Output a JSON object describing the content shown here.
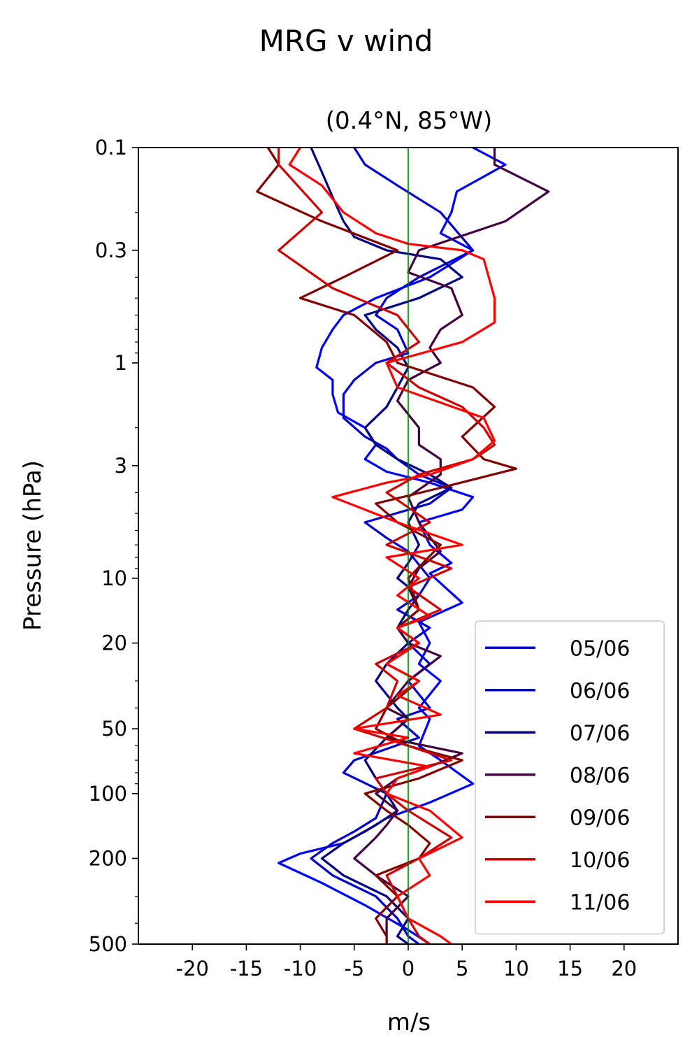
{
  "chart_data": {
    "type": "line",
    "title": "MRG v wind",
    "subtitle": "(0.4°N, 85°W)",
    "xlabel": "m/s",
    "ylabel": "Pressure (hPa)",
    "xlim": [
      -25,
      25
    ],
    "ylim": [
      500,
      0.1
    ],
    "yscale": "log",
    "y_inverted": true,
    "xticks": [
      -20,
      -15,
      -10,
      -5,
      0,
      5,
      10,
      15,
      20
    ],
    "xtick_labels": [
      "-20",
      "-15",
      "-10",
      "-5",
      "0",
      "5",
      "10",
      "15",
      "20"
    ],
    "yticks": [
      0.1,
      0.3,
      1,
      3,
      10,
      20,
      50,
      100,
      200,
      500
    ],
    "ytick_labels": [
      "0.1",
      "0.3",
      "1",
      "3",
      "10",
      "20",
      "50",
      "100",
      "200",
      "500"
    ],
    "reference_line": {
      "x": 0,
      "color": "#008000"
    },
    "legend_position": "lower-right",
    "grid": false,
    "series": [
      {
        "name": "05/06",
        "color": "#0000ff",
        "points": [
          [
            6,
            0.1
          ],
          [
            9,
            0.12
          ],
          [
            4.5,
            0.16
          ],
          [
            4,
            0.2
          ],
          [
            3,
            0.25
          ],
          [
            6,
            0.3
          ],
          [
            2,
            0.4
          ],
          [
            -3,
            0.5
          ],
          [
            -6,
            0.6
          ],
          [
            -7,
            0.7
          ],
          [
            -8,
            0.85
          ],
          [
            -8.5,
            1.05
          ],
          [
            -7,
            1.2
          ],
          [
            -7,
            1.4
          ],
          [
            -6.5,
            1.7
          ],
          [
            -4,
            2
          ],
          [
            -3,
            2.4
          ],
          [
            -4,
            2.8
          ],
          [
            -2,
            3.2
          ],
          [
            2,
            3.6
          ],
          [
            6,
            4.2
          ],
          [
            5,
            4.8
          ],
          [
            1,
            5.5
          ],
          [
            2,
            7
          ],
          [
            4,
            8.5
          ],
          [
            2,
            9.5
          ],
          [
            5,
            13
          ],
          [
            1,
            16
          ],
          [
            2,
            20
          ],
          [
            1,
            25
          ],
          [
            3,
            30
          ],
          [
            1,
            40
          ],
          [
            2,
            45
          ],
          [
            1,
            60
          ],
          [
            3,
            70
          ],
          [
            6,
            90
          ],
          [
            2,
            110
          ],
          [
            -2,
            130
          ],
          [
            -4,
            150
          ],
          [
            -6,
            170
          ],
          [
            -10,
            190
          ],
          [
            -12,
            210
          ],
          [
            -8,
            260
          ],
          [
            -4,
            330
          ],
          [
            0,
            430
          ],
          [
            2,
            500
          ]
        ]
      },
      {
        "name": "06/06",
        "color": "#0000cc",
        "points": [
          [
            -5,
            0.1
          ],
          [
            -4,
            0.12
          ],
          [
            -1,
            0.15
          ],
          [
            3,
            0.2
          ],
          [
            6,
            0.3
          ],
          [
            1,
            0.4
          ],
          [
            -2,
            0.5
          ],
          [
            -3,
            0.6
          ],
          [
            -1,
            0.7
          ],
          [
            0,
            0.9
          ],
          [
            -3,
            1.0
          ],
          [
            -5,
            1.2
          ],
          [
            -6,
            1.4
          ],
          [
            -6,
            1.8
          ],
          [
            -4,
            2.2
          ],
          [
            -2,
            2.5
          ],
          [
            -1,
            2.8
          ],
          [
            1,
            3.3
          ],
          [
            4,
            3.8
          ],
          [
            2,
            4.5
          ],
          [
            -4,
            5.5
          ],
          [
            -2,
            6.5
          ],
          [
            0,
            7.5
          ],
          [
            2,
            10
          ],
          [
            1,
            12
          ],
          [
            -1,
            14
          ],
          [
            2,
            17
          ],
          [
            0,
            20
          ],
          [
            2,
            25
          ],
          [
            0,
            30
          ],
          [
            2,
            40
          ],
          [
            -1,
            45
          ],
          [
            1,
            55
          ],
          [
            -5,
            70
          ],
          [
            -6,
            80
          ],
          [
            -2,
            100
          ],
          [
            -3,
            130
          ],
          [
            -5,
            150
          ],
          [
            -7,
            170
          ],
          [
            -9,
            200
          ],
          [
            -7,
            240
          ],
          [
            -3,
            300
          ],
          [
            -1,
            380
          ],
          [
            0,
            460
          ],
          [
            1,
            500
          ]
        ]
      },
      {
        "name": "07/06",
        "color": "#000080",
        "points": [
          [
            -9,
            0.1
          ],
          [
            -8,
            0.13
          ],
          [
            -7,
            0.17
          ],
          [
            -6,
            0.22
          ],
          [
            -5,
            0.26
          ],
          [
            -2,
            0.3
          ],
          [
            3,
            0.33
          ],
          [
            5,
            0.4
          ],
          [
            1,
            0.5
          ],
          [
            -4,
            0.6
          ],
          [
            -3,
            0.7
          ],
          [
            -1,
            0.85
          ],
          [
            0,
            1.05
          ],
          [
            -1,
            1.3
          ],
          [
            -2,
            1.6
          ],
          [
            -4,
            2.0
          ],
          [
            -3,
            2.4
          ],
          [
            -1,
            2.8
          ],
          [
            2,
            3.3
          ],
          [
            4,
            3.8
          ],
          [
            1,
            4.5
          ],
          [
            0,
            5.5
          ],
          [
            1,
            7
          ],
          [
            0,
            8.5
          ],
          [
            -1,
            10
          ],
          [
            1,
            12
          ],
          [
            0,
            14
          ],
          [
            -1,
            17
          ],
          [
            0,
            20
          ],
          [
            -2,
            25
          ],
          [
            -3,
            30
          ],
          [
            -1,
            40
          ],
          [
            0,
            45
          ],
          [
            -2,
            55
          ],
          [
            -4,
            70
          ],
          [
            -3,
            85
          ],
          [
            -2,
            100
          ],
          [
            -1,
            120
          ],
          [
            -3,
            140
          ],
          [
            -6,
            170
          ],
          [
            -8,
            200
          ],
          [
            -6,
            240
          ],
          [
            -2,
            300
          ],
          [
            0,
            380
          ],
          [
            -1,
            460
          ],
          [
            0,
            500
          ]
        ]
      },
      {
        "name": "08/06",
        "color": "#400040",
        "points": [
          [
            8,
            0.1
          ],
          [
            8,
            0.12
          ],
          [
            13,
            0.16
          ],
          [
            9,
            0.22
          ],
          [
            1,
            0.3
          ],
          [
            0,
            0.38
          ],
          [
            4,
            0.45
          ],
          [
            5,
            0.6
          ],
          [
            3,
            0.7
          ],
          [
            2,
            0.85
          ],
          [
            3,
            1.0
          ],
          [
            0,
            1.2
          ],
          [
            -1,
            1.5
          ],
          [
            1,
            2.0
          ],
          [
            1,
            2.4
          ],
          [
            3,
            2.8
          ],
          [
            3,
            3.3
          ],
          [
            0,
            4.2
          ],
          [
            1,
            5.5
          ],
          [
            3,
            7.5
          ],
          [
            1,
            9
          ],
          [
            0,
            11
          ],
          [
            1,
            14
          ],
          [
            -1,
            17
          ],
          [
            0,
            20
          ],
          [
            3,
            23
          ],
          [
            0,
            30
          ],
          [
            -2,
            40
          ],
          [
            0,
            45
          ],
          [
            -2,
            55
          ],
          [
            5,
            65
          ],
          [
            2,
            75
          ],
          [
            -1,
            85
          ],
          [
            -3,
            100
          ],
          [
            -1,
            120
          ],
          [
            -2,
            140
          ],
          [
            -3,
            160
          ],
          [
            -5,
            200
          ],
          [
            -3,
            240
          ],
          [
            0,
            300
          ],
          [
            -2,
            380
          ],
          [
            -2,
            460
          ],
          [
            -2,
            500
          ]
        ]
      },
      {
        "name": "09/06",
        "color": "#800000",
        "points": [
          [
            -13,
            0.1
          ],
          [
            -12,
            0.12
          ],
          [
            -14,
            0.16
          ],
          [
            -8,
            0.22
          ],
          [
            -1,
            0.3
          ],
          [
            -6,
            0.4
          ],
          [
            -10,
            0.5
          ],
          [
            -5,
            0.6
          ],
          [
            -2,
            0.8
          ],
          [
            -1,
            1.0
          ],
          [
            6,
            1.3
          ],
          [
            8,
            1.6
          ],
          [
            5,
            2.2
          ],
          [
            7,
            2.8
          ],
          [
            10,
            3.1
          ],
          [
            3,
            3.8
          ],
          [
            -3,
            4.5
          ],
          [
            -1,
            5.5
          ],
          [
            3,
            7
          ],
          [
            0,
            10
          ],
          [
            1,
            14
          ],
          [
            -1,
            17
          ],
          [
            1,
            20
          ],
          [
            -2,
            25
          ],
          [
            1,
            30
          ],
          [
            -2,
            40
          ],
          [
            -3,
            50
          ],
          [
            0,
            60
          ],
          [
            5,
            70
          ],
          [
            1,
            85
          ],
          [
            -4,
            100
          ],
          [
            -2,
            120
          ],
          [
            0,
            140
          ],
          [
            2,
            170
          ],
          [
            1,
            200
          ],
          [
            -3,
            240
          ],
          [
            -1,
            300
          ],
          [
            -3,
            380
          ],
          [
            -2,
            460
          ],
          [
            -2,
            500
          ]
        ]
      },
      {
        "name": "10/06",
        "color": "#cc0000",
        "points": [
          [
            -12,
            0.1
          ],
          [
            -12,
            0.12
          ],
          [
            -8,
            0.2
          ],
          [
            -12,
            0.3
          ],
          [
            -7,
            0.45
          ],
          [
            -1,
            0.6
          ],
          [
            1,
            0.8
          ],
          [
            -2,
            1.0
          ],
          [
            1,
            1.3
          ],
          [
            5,
            1.6
          ],
          [
            7,
            2.0
          ],
          [
            8,
            2.4
          ],
          [
            7,
            2.6
          ],
          [
            6,
            2.8
          ],
          [
            1,
            3.3
          ],
          [
            -2,
            4.0
          ],
          [
            2,
            5.5
          ],
          [
            -2,
            7
          ],
          [
            4,
            9
          ],
          [
            0,
            11
          ],
          [
            3,
            14
          ],
          [
            -1,
            17
          ],
          [
            1,
            20
          ],
          [
            -3,
            25
          ],
          [
            -1,
            30
          ],
          [
            -2,
            40
          ],
          [
            -5,
            50
          ],
          [
            0,
            60
          ],
          [
            4,
            70
          ],
          [
            -3,
            85
          ],
          [
            -2,
            100
          ],
          [
            0,
            120
          ],
          [
            4,
            160
          ],
          [
            1,
            200
          ],
          [
            -2,
            240
          ],
          [
            -1,
            300
          ],
          [
            0,
            380
          ],
          [
            1,
            460
          ],
          [
            2,
            500
          ]
        ]
      },
      {
        "name": "11/06",
        "color": "#ff0000",
        "points": [
          [
            -10,
            0.1
          ],
          [
            -11,
            0.12
          ],
          [
            -8,
            0.15
          ],
          [
            -6,
            0.2
          ],
          [
            -3,
            0.25
          ],
          [
            0,
            0.28
          ],
          [
            5,
            0.3
          ],
          [
            7,
            0.33
          ],
          [
            8,
            0.5
          ],
          [
            8,
            0.65
          ],
          [
            5,
            0.8
          ],
          [
            -2,
            1.0
          ],
          [
            -1,
            1.3
          ],
          [
            7,
            1.8
          ],
          [
            8,
            2.3
          ],
          [
            6,
            2.8
          ],
          [
            2,
            3.3
          ],
          [
            -2,
            3.6
          ],
          [
            -7,
            4.2
          ],
          [
            -4,
            4.8
          ],
          [
            -1,
            5.5
          ],
          [
            5,
            7
          ],
          [
            -2,
            8
          ],
          [
            1,
            10
          ],
          [
            -1,
            12
          ],
          [
            2,
            15
          ],
          [
            -1,
            17
          ],
          [
            1,
            20
          ],
          [
            -2,
            25
          ],
          [
            1,
            30
          ],
          [
            -1,
            35
          ],
          [
            3,
            43
          ],
          [
            -5,
            50
          ],
          [
            0,
            55
          ],
          [
            -5,
            65
          ],
          [
            2,
            75
          ],
          [
            -1,
            85
          ],
          [
            -2,
            100
          ],
          [
            2,
            120
          ],
          [
            5,
            160
          ],
          [
            1,
            200
          ],
          [
            2,
            240
          ],
          [
            -1,
            300
          ],
          [
            0,
            380
          ],
          [
            3,
            460
          ],
          [
            4,
            500
          ]
        ]
      }
    ]
  }
}
